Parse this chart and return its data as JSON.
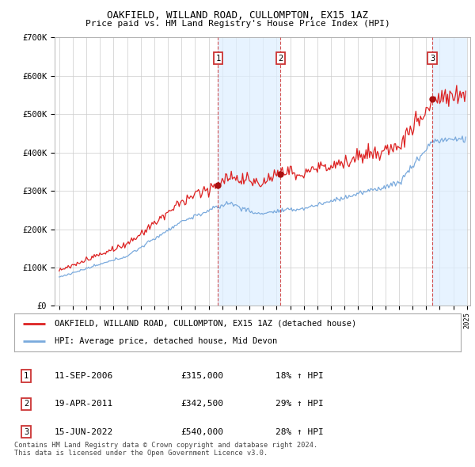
{
  "title": "OAKFIELD, WILLAND ROAD, CULLOMPTON, EX15 1AZ",
  "subtitle": "Price paid vs. HM Land Registry's House Price Index (HPI)",
  "ylim": [
    0,
    700000
  ],
  "yticks": [
    0,
    100000,
    200000,
    300000,
    400000,
    500000,
    600000,
    700000
  ],
  "ytick_labels": [
    "£0",
    "£100K",
    "£200K",
    "£300K",
    "£400K",
    "£500K",
    "£600K",
    "£700K"
  ],
  "hpi_color": "#7aaadd",
  "property_color": "#dd2222",
  "sale_dates_str": [
    "2006-09-11",
    "2011-04-19",
    "2022-06-15"
  ],
  "sale_prices": [
    315000,
    342500,
    540000
  ],
  "sale_labels": [
    "1",
    "2",
    "3"
  ],
  "sale_hpi_pct": [
    "18% ↑ HPI",
    "29% ↑ HPI",
    "28% ↑ HPI"
  ],
  "sale_date_labels": [
    "11-SEP-2006",
    "19-APR-2011",
    "15-JUN-2022"
  ],
  "sale_price_labels": [
    "£315,000",
    "£342,500",
    "£540,000"
  ],
  "legend_property": "OAKFIELD, WILLAND ROAD, CULLOMPTON, EX15 1AZ (detached house)",
  "legend_hpi": "HPI: Average price, detached house, Mid Devon",
  "footnote": "Contains HM Land Registry data © Crown copyright and database right 2024.\nThis data is licensed under the Open Government Licence v3.0.",
  "background_color": "#ffffff",
  "shade_color": "#ddeeff",
  "grid_color": "#cccccc",
  "xstart_year": 1995,
  "xend_year": 2025
}
